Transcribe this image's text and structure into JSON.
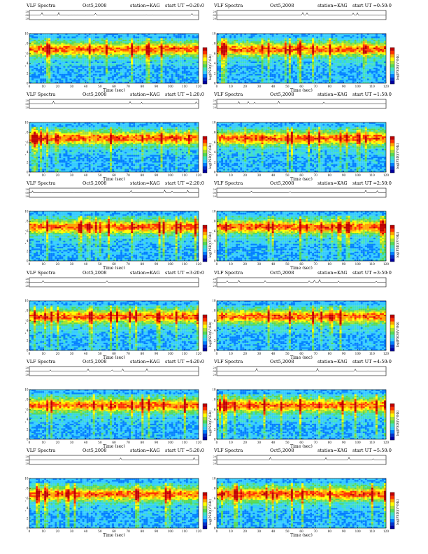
{
  "chart_data": [
    {
      "type": "heatmap",
      "title": "VLF Spectra",
      "date": "Oct5,2008",
      "station": "station=KAG",
      "start": "start  UT  =0:20:0",
      "ylabel_top": "ch1(V)",
      "ylabel_spec": "Frequency (kHz)",
      "ch_label": "ch1",
      "xlabel": "Time (sec)",
      "cbar_label": "log(PSD)(V²/Hz)",
      "xlim": [
        0,
        120
      ],
      "ylim": [
        0,
        10
      ],
      "top_ylim": [
        -0.2,
        0.2
      ],
      "xticks": [
        "0",
        "10",
        "20",
        "30",
        "40",
        "50",
        "60",
        "70",
        "80",
        "90",
        "100",
        "110",
        "120"
      ],
      "yticks": [
        "0",
        "2",
        "4",
        "6",
        "8",
        "10"
      ],
      "top_ticks": [
        "0.20",
        "0.00",
        "-0.20"
      ]
    },
    {
      "type": "heatmap",
      "title": "VLF Spectra",
      "date": "Oct5,2008",
      "station": "station=KAG",
      "start": "start  UT  =0:50:0",
      "ylabel_top": "ch1(V)",
      "ylabel_spec": "Frequency (kHz)",
      "ch_label": "ch1",
      "xlabel": "Time (sec)",
      "cbar_label": "log(PSD)(V²/Hz)",
      "xlim": [
        0,
        120
      ],
      "ylim": [
        0,
        10
      ],
      "top_ylim": [
        -0.2,
        0.2
      ],
      "xticks": [
        "0",
        "10",
        "20",
        "30",
        "40",
        "50",
        "60",
        "70",
        "80",
        "90",
        "100",
        "110",
        "120"
      ],
      "yticks": [
        "0",
        "2",
        "4",
        "6",
        "8",
        "10"
      ],
      "top_ticks": [
        "0.20",
        "0.00",
        "-0.20"
      ]
    },
    {
      "type": "heatmap",
      "title": "VLF Spectra",
      "date": "Oct5,2008",
      "station": "station=KAG",
      "start": "start  UT  =1:20:0",
      "ylabel_top": "ch1(V)",
      "ylabel_spec": "Frequency (kHz)",
      "ch_label": "ch1",
      "xlabel": "Time (sec)",
      "cbar_label": "log(PSD)(V²/Hz)",
      "xlim": [
        0,
        120
      ],
      "ylim": [
        0,
        10
      ],
      "top_ylim": [
        -0.2,
        0.2
      ],
      "xticks": [
        "0",
        "10",
        "20",
        "30",
        "40",
        "50",
        "60",
        "70",
        "80",
        "90",
        "100",
        "110",
        "120"
      ],
      "yticks": [
        "0",
        "2",
        "4",
        "6",
        "8",
        "10"
      ],
      "top_ticks": [
        "0.20",
        "0.00",
        "-0.20"
      ]
    },
    {
      "type": "heatmap",
      "title": "VLF Spectra",
      "date": "Oct5,2008",
      "station": "station=KAG",
      "start": "start  UT  =1:50:0",
      "ylabel_top": "ch1(V)",
      "ylabel_spec": "Frequency (kHz)",
      "ch_label": "ch1",
      "xlabel": "Time (sec)",
      "cbar_label": "log(PSD)(V²/Hz)",
      "xlim": [
        0,
        120
      ],
      "ylim": [
        0,
        10
      ],
      "top_ylim": [
        -0.2,
        0.2
      ],
      "xticks": [
        "0",
        "10",
        "20",
        "30",
        "40",
        "50",
        "60",
        "70",
        "80",
        "90",
        "100",
        "110",
        "120"
      ],
      "yticks": [
        "0",
        "2",
        "4",
        "6",
        "8",
        "10"
      ],
      "top_ticks": [
        "0.20",
        "0.00",
        "-0.20"
      ]
    },
    {
      "type": "heatmap",
      "title": "VLF Spectra",
      "date": "Oct5,2008",
      "station": "station=KAG",
      "start": "start  UT  =2:20:0",
      "ylabel_top": "ch1(V)",
      "ylabel_spec": "Frequency (kHz)",
      "ch_label": "ch1",
      "xlabel": "Time (sec)",
      "cbar_label": "log(PSD)(V²/Hz)",
      "xlim": [
        0,
        120
      ],
      "ylim": [
        0,
        10
      ],
      "top_ylim": [
        -0.2,
        0.2
      ],
      "xticks": [
        "0",
        "10",
        "20",
        "30",
        "40",
        "50",
        "60",
        "70",
        "80",
        "90",
        "100",
        "110",
        "120"
      ],
      "yticks": [
        "0",
        "2",
        "4",
        "6",
        "8",
        "10"
      ],
      "top_ticks": [
        "0.20",
        "0.00",
        "-0.20"
      ]
    },
    {
      "type": "heatmap",
      "title": "VLF Spectra",
      "date": "Oct5,2008",
      "station": "station=KAG",
      "start": "start  UT  =2:50:0",
      "ylabel_top": "ch1(V)",
      "ylabel_spec": "Frequency (kHz)",
      "ch_label": "ch1",
      "xlabel": "Time (sec)",
      "cbar_label": "log(PSD)(V²/Hz)",
      "xlim": [
        0,
        120
      ],
      "ylim": [
        0,
        10
      ],
      "top_ylim": [
        -0.2,
        0.2
      ],
      "xticks": [
        "0",
        "10",
        "20",
        "30",
        "40",
        "50",
        "60",
        "70",
        "80",
        "90",
        "100",
        "110",
        "120"
      ],
      "yticks": [
        "0",
        "2",
        "4",
        "6",
        "8",
        "10"
      ],
      "top_ticks": [
        "0.20",
        "0.00",
        "-0.20"
      ]
    },
    {
      "type": "heatmap",
      "title": "VLF Spectra",
      "date": "Oct5,2008",
      "station": "station=KAG",
      "start": "start  UT  =3:20:0",
      "ylabel_top": "ch1(V)",
      "ylabel_spec": "Frequency (kHz)",
      "ch_label": "ch1",
      "xlabel": "Time (sec)",
      "cbar_label": "log(PSD)(V²/Hz)",
      "xlim": [
        0,
        120
      ],
      "ylim": [
        0,
        10
      ],
      "top_ylim": [
        -0.2,
        0.2
      ],
      "xticks": [
        "0",
        "10",
        "20",
        "30",
        "40",
        "50",
        "60",
        "70",
        "80",
        "90",
        "100",
        "110",
        "120"
      ],
      "yticks": [
        "0",
        "2",
        "4",
        "6",
        "8",
        "10"
      ],
      "top_ticks": [
        "0.20",
        "0.00",
        "-0.20"
      ]
    },
    {
      "type": "heatmap",
      "title": "VLF Spectra",
      "date": "Oct5,2008",
      "station": "station=KAG",
      "start": "start  UT  =3:50:0",
      "ylabel_top": "ch1(V)",
      "ylabel_spec": "Frequency (kHz)",
      "ch_label": "ch1",
      "xlabel": "Time (sec)",
      "cbar_label": "log(PSD)(V²/Hz)",
      "xlim": [
        0,
        120
      ],
      "ylim": [
        0,
        10
      ],
      "top_ylim": [
        -0.2,
        0.2
      ],
      "xticks": [
        "0",
        "10",
        "20",
        "30",
        "40",
        "50",
        "60",
        "70",
        "80",
        "90",
        "100",
        "110",
        "120"
      ],
      "yticks": [
        "0",
        "2",
        "4",
        "6",
        "8",
        "10"
      ],
      "top_ticks": [
        "0.20",
        "0.00",
        "-0.20"
      ]
    },
    {
      "type": "heatmap",
      "title": "VLF Spectra",
      "date": "Oct5,2008",
      "station": "station=KAG",
      "start": "start  UT  =4:20:0",
      "ylabel_top": "ch1(V)",
      "ylabel_spec": "Frequency (kHz)",
      "ch_label": "ch1",
      "xlabel": "Time (sec)",
      "cbar_label": "log(PSD)(V²/Hz)",
      "xlim": [
        0,
        120
      ],
      "ylim": [
        0,
        10
      ],
      "top_ylim": [
        -0.2,
        0.2
      ],
      "xticks": [
        "0",
        "10",
        "20",
        "30",
        "40",
        "50",
        "60",
        "70",
        "80",
        "90",
        "100",
        "110",
        "120"
      ],
      "yticks": [
        "0",
        "2",
        "4",
        "6",
        "8",
        "10"
      ],
      "top_ticks": [
        "0.20",
        "0.00",
        "-0.20"
      ]
    },
    {
      "type": "heatmap",
      "title": "VLF Spectra",
      "date": "Oct5,2008",
      "station": "station=KAG",
      "start": "start  UT  =4:50:0",
      "ylabel_top": "ch1(V)",
      "ylabel_spec": "Frequency (kHz)",
      "ch_label": "ch1",
      "xlabel": "Time (sec)",
      "cbar_label": "log(PSD)(V²/Hz)",
      "xlim": [
        0,
        120
      ],
      "ylim": [
        0,
        10
      ],
      "top_ylim": [
        -0.2,
        0.2
      ],
      "xticks": [
        "0",
        "10",
        "20",
        "30",
        "40",
        "50",
        "60",
        "70",
        "80",
        "90",
        "100",
        "110",
        "120"
      ],
      "yticks": [
        "0",
        "2",
        "4",
        "6",
        "8",
        "10"
      ],
      "top_ticks": [
        "0.20",
        "0.00",
        "-0.20"
      ]
    },
    {
      "type": "heatmap",
      "title": "VLF Spectra",
      "date": "Oct5,2008",
      "station": "station=KAG",
      "start": "start  UT  =5:20:0",
      "ylabel_top": "ch1(V)",
      "ylabel_spec": "Frequency (kHz)",
      "ch_label": "ch1",
      "xlabel": "Time (sec)",
      "cbar_label": "log(PSD)(V²/Hz)",
      "xlim": [
        0,
        120
      ],
      "ylim": [
        0,
        10
      ],
      "top_ylim": [
        -0.2,
        0.2
      ],
      "xticks": [
        "0",
        "10",
        "20",
        "30",
        "40",
        "50",
        "60",
        "70",
        "80",
        "90",
        "100",
        "110",
        "120"
      ],
      "yticks": [
        "0",
        "2",
        "4",
        "6",
        "8",
        "10"
      ],
      "top_ticks": [
        "0.20",
        "0.00",
        "-0.20"
      ]
    },
    {
      "type": "heatmap",
      "title": "VLF Spectra",
      "date": "Oct5,2008",
      "station": "station=KAG",
      "start": "start  UT  =5:50:0",
      "ylabel_top": "ch1(V)",
      "ylabel_spec": "Frequency (kHz)",
      "ch_label": "ch1",
      "xlabel": "Time (sec)",
      "cbar_label": "log(PSD)(V²/Hz)",
      "xlim": [
        0,
        120
      ],
      "ylim": [
        0,
        10
      ],
      "top_ylim": [
        -0.2,
        0.2
      ],
      "xticks": [
        "0",
        "10",
        "20",
        "30",
        "40",
        "50",
        "60",
        "70",
        "80",
        "90",
        "100",
        "110",
        "120"
      ],
      "yticks": [
        "0",
        "2",
        "4",
        "6",
        "8",
        "10"
      ],
      "top_ticks": [
        "0.20",
        "0.00",
        "-0.20"
      ]
    }
  ],
  "colors": {
    "colormap": [
      "#0000a0",
      "#0033cc",
      "#0080ff",
      "#33ccff",
      "#40e0c0",
      "#55d855",
      "#a8e030",
      "#ffff00",
      "#ffa500",
      "#ff3000",
      "#c00000"
    ],
    "trace": "#000000",
    "axis": "#000000"
  }
}
